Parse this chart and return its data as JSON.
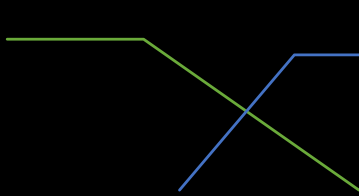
{
  "background_color": "#000000",
  "green_color": "#6aaa3a",
  "blue_color": "#4472c4",
  "line_width": 2.0,
  "green_x": [
    0.02,
    0.4,
    1.0
  ],
  "green_y": [
    0.8,
    0.8,
    0.03
  ],
  "blue_x": [
    0.5,
    0.82,
    1.0
  ],
  "blue_y": [
    0.03,
    0.72,
    0.72
  ],
  "xlim": [
    0,
    1
  ],
  "ylim": [
    0,
    1
  ]
}
